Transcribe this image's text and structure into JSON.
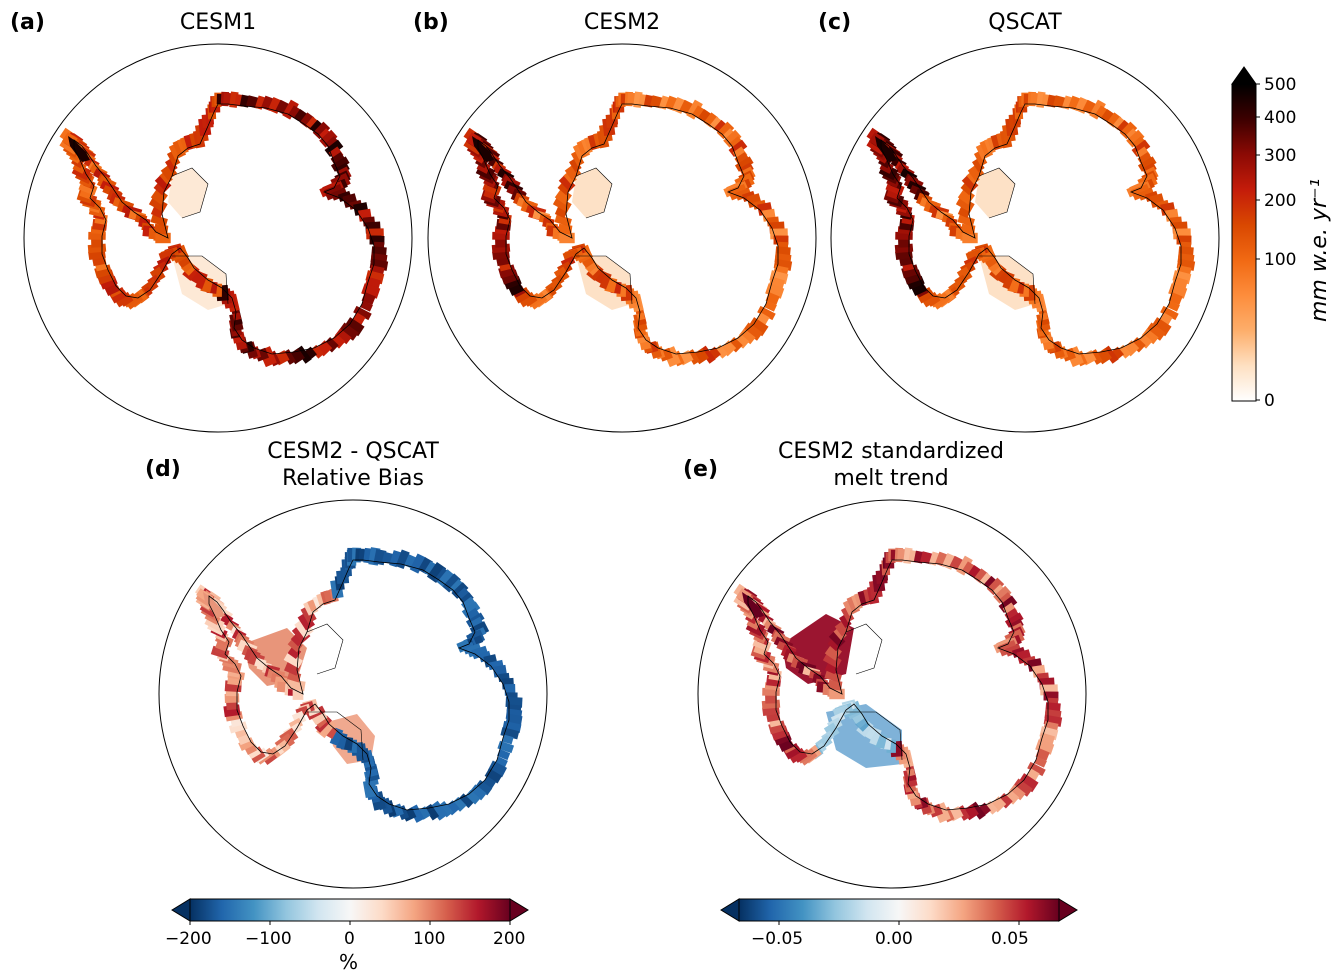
{
  "panels": [
    {
      "letter": "(a)",
      "title_lines": [
        "CESM1"
      ]
    },
    {
      "letter": "(b)",
      "title_lines": [
        "CESM2"
      ]
    },
    {
      "letter": "(c)",
      "title_lines": [
        "QSCAT"
      ]
    },
    {
      "letter": "(d)",
      "title_lines": [
        "CESM2 - QSCAT",
        "Relative Bias"
      ]
    },
    {
      "letter": "(e)",
      "title_lines": [
        "CESM2 standardized",
        "melt trend"
      ]
    }
  ],
  "colorbar_melt": {
    "label": "mm w.e. yr⁻¹",
    "ticks": [
      "500",
      "400",
      "300",
      "200",
      "100",
      "0"
    ],
    "colormap": [
      "#ffffff",
      "#fee0c2",
      "#fdae6b",
      "#fd8d3c",
      "#f16913",
      "#d94801",
      "#c41c0a",
      "#8c0a04",
      "#3d0000",
      "#000000"
    ]
  },
  "colorbar_bias": {
    "ticks": [
      "−200",
      "−100",
      "0",
      "100",
      "200"
    ],
    "label": "%",
    "colormap": [
      "#053061",
      "#2166ac",
      "#4393c3",
      "#92c5de",
      "#d1e5f0",
      "#f7f7f7",
      "#fddbc7",
      "#f4a582",
      "#d6604d",
      "#b2182b",
      "#67001f"
    ]
  },
  "colorbar_trend": {
    "ticks": [
      "−0.05",
      "0.00",
      "0.05"
    ],
    "colormap": [
      "#053061",
      "#2166ac",
      "#4393c3",
      "#92c5de",
      "#d1e5f0",
      "#f7f7f7",
      "#fddbc7",
      "#f4a582",
      "#d6604d",
      "#b2182b",
      "#67001f"
    ]
  }
}
